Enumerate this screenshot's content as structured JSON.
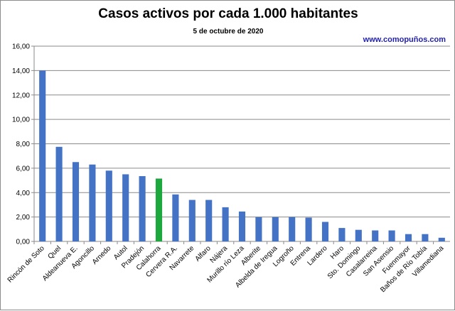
{
  "chart_data": {
    "type": "bar",
    "title": "Casos activos por cada 1.000 habitantes",
    "subtitle": "5 de octubre de 2020",
    "source": "www.comopuños.com",
    "ylim": [
      0,
      16
    ],
    "ytick_step": 2,
    "ytick_labels": [
      "0,00",
      "2,00",
      "4,00",
      "6,00",
      "8,00",
      "10,00",
      "12,00",
      "14,00",
      "16,00"
    ],
    "grid": true,
    "categories": [
      "Rincón de Soto",
      "Quel",
      "Aldeanueva E.",
      "Agoncillo",
      "Arnedo",
      "Autol",
      "Pradejón",
      "Calahorra",
      "Cervera R.A.",
      "Navarrete",
      "Alfaro",
      "Nájera",
      "Murillo río Leza",
      "Alberite",
      "Albelda de Iregua",
      "Logroño",
      "Entrena",
      "Lardero",
      "Haro",
      "Sto. Domingo",
      "Casalarreina",
      "San Asensio",
      "Fuenmayor",
      "Baños de Río Tobía",
      "Villamediana"
    ],
    "values": [
      14.0,
      7.75,
      6.5,
      6.3,
      5.8,
      5.5,
      5.35,
      5.15,
      3.85,
      3.4,
      3.4,
      2.8,
      2.45,
      2.0,
      2.0,
      2.0,
      1.95,
      1.6,
      1.1,
      0.95,
      0.9,
      0.9,
      0.6,
      0.6,
      0.3
    ],
    "bar_color": "#4472c4",
    "highlight_color": "#1ca83c",
    "highlight_category": "Calahorra"
  }
}
